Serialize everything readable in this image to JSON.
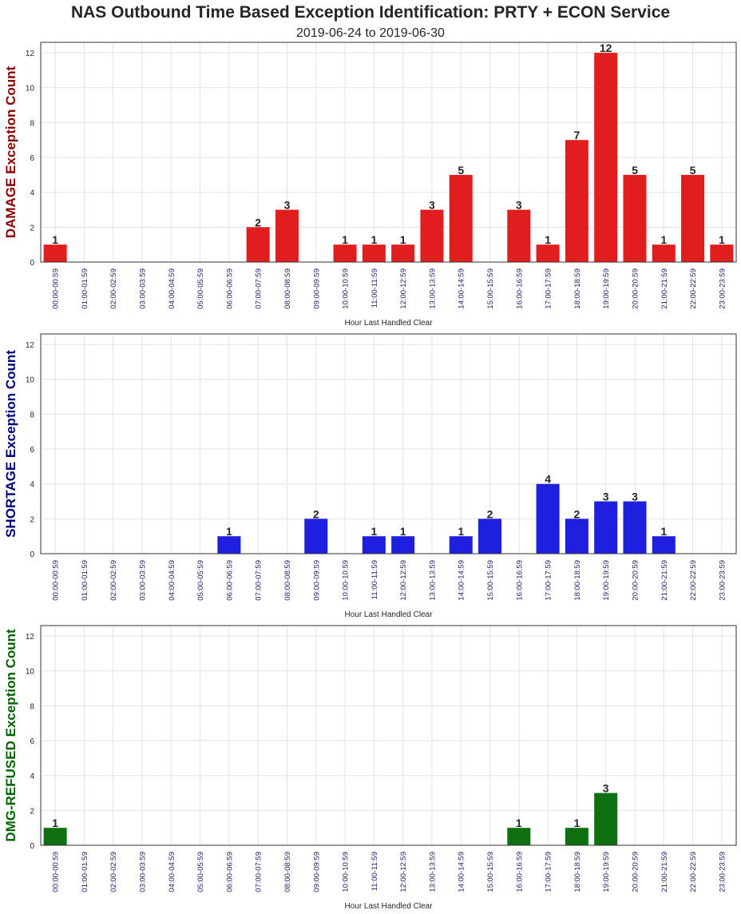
{
  "title": "NAS Outbound Time Based Exception Identification: PRTY + ECON Service",
  "subtitle": "2019-06-24  to  2019-06-30",
  "colors": {
    "axis_text": "#1f1f6b",
    "grid": "#e3e3e3",
    "frame": "#333333"
  },
  "chart_data": [
    {
      "type": "bar",
      "categories": [
        "00:00-00:59",
        "01:00-01:59",
        "02:00-02:59",
        "03:00-03:59",
        "04:00-04:59",
        "05:00-05:59",
        "06:00-06:59",
        "07:00-07:59",
        "08:00-08:59",
        "09:00-09:59",
        "10:00-10:59",
        "11:00-11:59",
        "12:00-12:59",
        "13:00-13:59",
        "14:00-14:59",
        "15:00-15:59",
        "16:00-16:59",
        "17:00-17:59",
        "18:00-18:59",
        "19:00-19:59",
        "20:00-20:59",
        "21:00-21:59",
        "22:00-22:59",
        "23:00-23:59"
      ],
      "values": [
        1,
        0,
        0,
        0,
        0,
        0,
        0,
        2,
        3,
        0,
        1,
        1,
        1,
        3,
        5,
        0,
        3,
        1,
        7,
        12,
        5,
        1,
        5,
        1
      ],
      "xlabel": "Hour Last Handled Clear",
      "ylabel": "DAMAGE Exception Count",
      "ylabel_color": "#8b0000",
      "bar_color": "#e01e1e",
      "ylim": [
        0,
        12.6
      ],
      "yticks": [
        0,
        2,
        4,
        6,
        8,
        10,
        12
      ],
      "grid": true
    },
    {
      "type": "bar",
      "categories": [
        "00:00-00:59",
        "01:00-01:59",
        "02:00-02:59",
        "03:00-03:59",
        "04:00-04:59",
        "05:00-05:59",
        "06:00-06:59",
        "07:00-07:59",
        "08:00-08:59",
        "09:00-09:59",
        "10:00-10:59",
        "11:00-11:59",
        "12:00-12:59",
        "13:00-13:59",
        "14:00-14:59",
        "15:00-15:59",
        "16:00-16:59",
        "17:00-17:59",
        "18:00-18:59",
        "19:00-19:59",
        "20:00-20:59",
        "21:00-21:59",
        "22:00-22:59",
        "23:00-23:59"
      ],
      "values": [
        0,
        0,
        0,
        0,
        0,
        0,
        1,
        0,
        0,
        2,
        0,
        1,
        1,
        0,
        1,
        2,
        0,
        4,
        2,
        3,
        3,
        1,
        0,
        0
      ],
      "xlabel": "Hour Last Handled Clear",
      "ylabel": "SHORTAGE Exception Count",
      "ylabel_color": "#00007a",
      "bar_color": "#1f1fe0",
      "ylim": [
        0,
        12.6
      ],
      "yticks": [
        0,
        2,
        4,
        6,
        8,
        10,
        12
      ],
      "grid": true
    },
    {
      "type": "bar",
      "categories": [
        "00:00-00:59",
        "01:00-01:59",
        "02:00-02:59",
        "03:00-03:59",
        "04:00-04:59",
        "05:00-05:59",
        "06:00-06:59",
        "07:00-07:59",
        "08:00-08:59",
        "09:00-09:59",
        "10:00-10:59",
        "11:00-11:59",
        "12:00-12:59",
        "13:00-13:59",
        "14:00-14:59",
        "15:00-15:59",
        "16:00-16:59",
        "17:00-17:59",
        "18:00-18:59",
        "19:00-19:59",
        "20:00-20:59",
        "21:00-21:59",
        "22:00-22:59",
        "23:00-23:59"
      ],
      "values": [
        1,
        0,
        0,
        0,
        0,
        0,
        0,
        0,
        0,
        0,
        0,
        0,
        0,
        0,
        0,
        0,
        1,
        0,
        1,
        3,
        0,
        0,
        0,
        0
      ],
      "xlabel": "Hour Last Handled Clear",
      "ylabel": "DMG-REFUSED Exception Count",
      "ylabel_color": "#006400",
      "bar_color": "#0f7012",
      "ylim": [
        0,
        12.6
      ],
      "yticks": [
        0,
        2,
        4,
        6,
        8,
        10,
        12
      ],
      "grid": true
    }
  ]
}
